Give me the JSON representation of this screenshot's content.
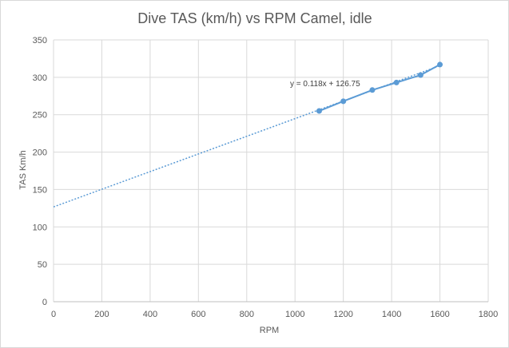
{
  "chart_data": {
    "type": "scatter",
    "title": "Dive TAS (km/h) vs RPM Camel, idle",
    "xlabel": "RPM",
    "ylabel": "TAS Km/h",
    "xlim": [
      0,
      1800
    ],
    "ylim": [
      0,
      350
    ],
    "xticks": [
      0,
      200,
      400,
      600,
      800,
      1000,
      1200,
      1400,
      1600,
      1800
    ],
    "yticks": [
      0,
      50,
      100,
      150,
      200,
      250,
      300,
      350
    ],
    "grid": true,
    "series": [
      {
        "name": "TAS",
        "color": "#5b9bd5",
        "x": [
          1100,
          1200,
          1320,
          1420,
          1520,
          1600
        ],
        "y": [
          255,
          268,
          283,
          293,
          303,
          317
        ]
      }
    ],
    "trendline": {
      "type": "linear",
      "slope": 0.118,
      "intercept": 126.75,
      "x_range": [
        0,
        1600
      ],
      "color": "#5b9bd5",
      "label": "y = 0.118x + 126.75"
    }
  }
}
